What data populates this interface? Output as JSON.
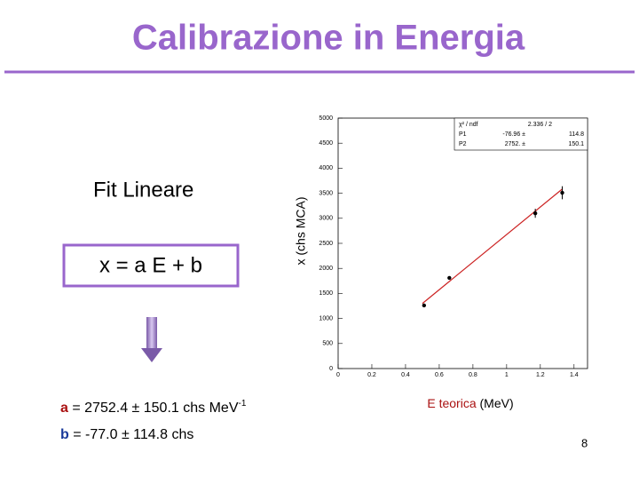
{
  "title": "Calibrazione in Energia",
  "method": "Fit Lineare",
  "formula": "x = a E + b",
  "results": [
    {
      "symbol": "a",
      "text": "= 2752.4 ± 150.1  chs MeV",
      "sup": "-1"
    },
    {
      "symbol": "b",
      "text": "= -77.0 ± 114.8   chs"
    }
  ],
  "page_number": "8",
  "chart_data": {
    "type": "scatter",
    "ylabel": "x (chs MCA)",
    "xlabel": "E teorica",
    "xlabel_unit": "(MeV)",
    "x": [
      0.51,
      0.66,
      1.17,
      1.33
    ],
    "values": [
      1260,
      1810,
      3100,
      3510
    ],
    "errors": [
      30,
      30,
      90,
      130
    ],
    "color": "#000000",
    "fit": {
      "x": [
        0.5,
        1.33
      ],
      "values": [
        1299,
        3584
      ],
      "color": "#cc2222"
    },
    "xlim": [
      0,
      1.48
    ],
    "xticks": [
      0,
      0.2,
      0.4,
      0.6,
      0.8,
      1,
      1.2,
      1.4
    ],
    "ylim": [
      0,
      5000
    ],
    "yticks": [
      0,
      500,
      1000,
      1500,
      2000,
      2500,
      3000,
      3500,
      4000,
      4500,
      5000
    ],
    "stats": [
      [
        "χ² / ndf",
        "2.336  /  2"
      ],
      [
        "P1",
        "-76.96 ±",
        "114.8"
      ],
      [
        "P2",
        "2752. ±",
        "150.1"
      ]
    ]
  }
}
